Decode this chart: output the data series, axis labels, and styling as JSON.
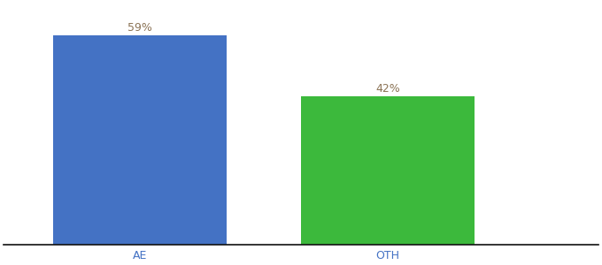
{
  "categories": [
    "AE",
    "OTH"
  ],
  "values": [
    59,
    42
  ],
  "bar_colors": [
    "#4472C4",
    "#3CB93C"
  ],
  "label_color": "#8B7355",
  "label_fontsize": 9,
  "tick_label_color": "#4472C4",
  "tick_fontsize": 9,
  "ylim": [
    0,
    68
  ],
  "background_color": "#ffffff",
  "bar_positions": [
    1,
    2
  ],
  "bar_width": 0.7
}
